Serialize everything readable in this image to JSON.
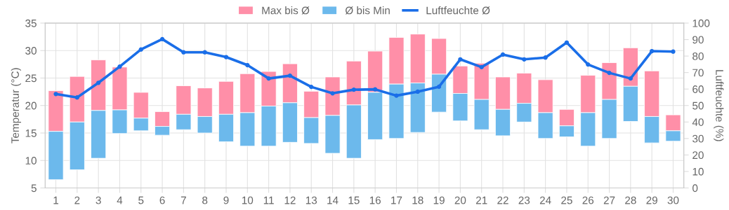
{
  "chart_data": {
    "type": "bar",
    "categories": [
      "1",
      "2",
      "3",
      "4",
      "5",
      "6",
      "7",
      "8",
      "9",
      "10",
      "11",
      "12",
      "13",
      "14",
      "15",
      "16",
      "17",
      "18",
      "19",
      "20",
      "21",
      "22",
      "23",
      "24",
      "25",
      "26",
      "27",
      "28",
      "29",
      "30"
    ],
    "series": [
      {
        "name": "Max bis Ø",
        "color": "#ff8fa8",
        "base": [
          15.3,
          17.0,
          19.1,
          19.2,
          17.7,
          16.2,
          18.4,
          18.0,
          18.4,
          18.7,
          19.9,
          20.5,
          17.8,
          18.2,
          20.1,
          22.4,
          23.9,
          24.1,
          25.7,
          22.2,
          21.1,
          19.3,
          20.4,
          18.7,
          16.3,
          18.7,
          21.1,
          23.5,
          18.0,
          15.4
        ],
        "values": [
          7.4,
          8.3,
          9.2,
          7.8,
          4.7,
          2.7,
          5.2,
          5.2,
          6.0,
          7.1,
          6.3,
          7.1,
          4.8,
          7.0,
          8.0,
          7.5,
          8.5,
          8.9,
          6.5,
          5.0,
          6.6,
          5.9,
          5.5,
          6.0,
          3.0,
          6.8,
          6.7,
          7.0,
          8.3,
          2.9
        ]
      },
      {
        "name": "Ø bis Min",
        "color": "#6cb9ec",
        "base": [
          6.5,
          8.3,
          10.4,
          14.9,
          15.4,
          14.6,
          15.6,
          15.0,
          13.4,
          12.6,
          12.6,
          13.3,
          13.1,
          11.3,
          10.4,
          13.8,
          14.0,
          15.1,
          18.8,
          17.2,
          15.6,
          14.5,
          17.0,
          14.0,
          14.3,
          12.6,
          14.0,
          17.1,
          13.2,
          13.5
        ],
        "values": [
          8.8,
          8.7,
          8.7,
          4.3,
          2.3,
          1.6,
          2.8,
          3.0,
          5.0,
          6.1,
          7.3,
          7.2,
          4.7,
          6.9,
          9.7,
          8.6,
          9.9,
          9.0,
          6.9,
          5.0,
          5.5,
          4.8,
          3.4,
          4.7,
          2.0,
          6.1,
          7.1,
          6.4,
          4.8,
          1.9
        ]
      },
      {
        "name": "Luftfeuchte Ø",
        "type": "line",
        "axis": "y2",
        "color": "#1a6ee8",
        "marker": "circle",
        "values": [
          57.0,
          54.9,
          63.8,
          73.6,
          84.0,
          90.3,
          82.3,
          82.3,
          79.4,
          74.5,
          66.4,
          68.1,
          61.3,
          57.4,
          59.6,
          59.8,
          56.0,
          58.4,
          61.4,
          78.0,
          73.3,
          80.9,
          78.0,
          79.1,
          88.2,
          74.9,
          69.8,
          66.4,
          83.0,
          82.7
        ]
      }
    ],
    "ylabel": "Temperatur (°C)",
    "y2label": "Luftfeuchte (%)",
    "ylim": [
      5,
      35
    ],
    "yticks": [
      5,
      10,
      15,
      20,
      25,
      30,
      35
    ],
    "y2lim": [
      0,
      100
    ],
    "y2ticks": [
      0,
      10,
      20,
      30,
      40,
      50,
      60,
      70,
      80,
      90,
      100
    ],
    "grid": true,
    "legend": "top"
  }
}
